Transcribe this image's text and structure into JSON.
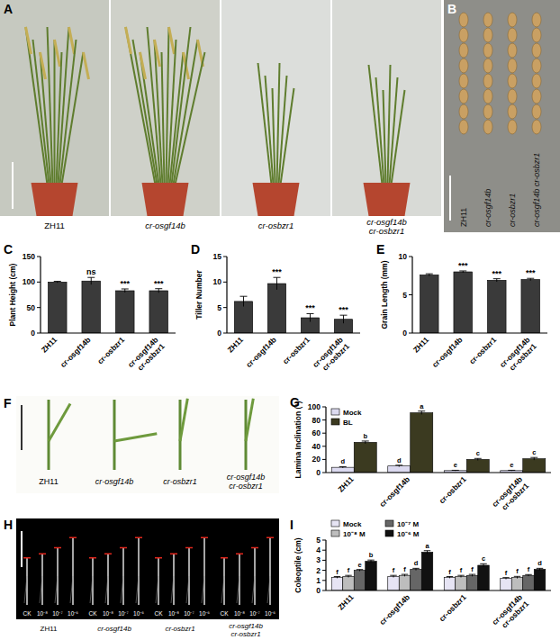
{
  "panels": [
    {
      "panel": "A",
      "labels": [
        "ZH11",
        "cr-osgf14b",
        "cr-osbzr1",
        "cr-osgf14b cr-osbzr1"
      ]
    },
    {
      "panel": "B",
      "labels": [
        "ZH11",
        "cr-osgf14b",
        "cr-osbzr1",
        "cr-osgf14b cr-osbzr1"
      ]
    },
    {
      "panel": "F",
      "labels": [
        "ZH11",
        "cr-osgf14b",
        "cr-osbzr1",
        "cr-osgf14b cr-osbzr1"
      ]
    },
    {
      "panel": "H",
      "labels": [
        "ZH11",
        "cr-osgf14b",
        "cr-osbzr1",
        "cr-osgf14b cr-osbzr1"
      ],
      "treatments": [
        "CK",
        "10⁻⁸",
        "10⁻⁷",
        "10⁻⁶"
      ]
    }
  ],
  "chart_data": [
    {
      "panel": "C",
      "type": "bar",
      "y_label": "Plant Height (cm)",
      "categories": [
        "ZH11",
        "cr-osgf14b",
        "cr-osbzr1",
        "cr-osgf14b cr-osbzr1"
      ],
      "values": [
        100,
        102,
        83,
        83
      ],
      "errors": [
        1.5,
        7,
        3.5,
        4
      ],
      "annotations": [
        null,
        "ns",
        "***",
        "***"
      ],
      "color": "#3a3a3a",
      "ylim": [
        0,
        150
      ],
      "yticks": [
        0,
        50,
        100,
        150
      ],
      "grid": false
    },
    {
      "panel": "D",
      "type": "bar",
      "y_label": "Tiller Number",
      "categories": [
        "ZH11",
        "cr-osgf14b",
        "cr-osbzr1",
        "cr-osgf14b cr-osbzr1"
      ],
      "values": [
        6.2,
        9.7,
        3.0,
        2.7
      ],
      "errors": [
        1.0,
        1.2,
        0.8,
        0.8
      ],
      "annotations": [
        null,
        "***",
        "***",
        "***"
      ],
      "color": "#3a3a3a",
      "ylim": [
        0,
        15
      ],
      "yticks": [
        0,
        5,
        10,
        15
      ],
      "grid": false
    },
    {
      "panel": "E",
      "type": "bar",
      "y_label": "Grain Length (mm)",
      "categories": [
        "ZH11",
        "cr-osgf14b",
        "cr-osbzr1",
        "cr-osgf14b cr-osbzr1"
      ],
      "values": [
        7.6,
        8.0,
        6.9,
        7.0
      ],
      "errors": [
        0.15,
        0.12,
        0.2,
        0.15
      ],
      "annotations": [
        null,
        "***",
        "***",
        "***"
      ],
      "color": "#3a3a3a",
      "ylim": [
        0,
        10
      ],
      "yticks": [
        0,
        5,
        10
      ],
      "grid": false
    },
    {
      "panel": "G",
      "type": "bar",
      "y_label": "Lamina Inclination (°)",
      "categories": [
        "ZH11",
        "cr-osgf14b",
        "cr-osbzr1",
        "cr-osgf14b cr-osbzr1"
      ],
      "series": [
        {
          "name": "Mock",
          "color": "#dcdaf0",
          "values": [
            8,
            10,
            3,
            3
          ],
          "errors": [
            1,
            1.2,
            0.5,
            0.5
          ],
          "annotations": [
            "d",
            "d",
            "e",
            "e"
          ]
        },
        {
          "name": "BL",
          "color": "#3b3a20",
          "values": [
            46,
            91,
            20,
            21
          ],
          "errors": [
            2,
            2.5,
            1.5,
            2
          ],
          "annotations": [
            "b",
            "a",
            "c",
            "c"
          ]
        }
      ],
      "ylim": [
        0,
        100
      ],
      "yticks": [
        0,
        20,
        40,
        60,
        80,
        100
      ],
      "legend": "upper left",
      "grid": false
    },
    {
      "panel": "I",
      "type": "bar",
      "y_label": "Coleoptile (cm)",
      "categories": [
        "ZH11",
        "cr-osgf14b",
        "cr-osbzr1",
        "cr-osgf14b cr-osbzr1"
      ],
      "series": [
        {
          "name": "Mock",
          "color": "#e6e4f4",
          "values": [
            1.3,
            1.4,
            1.3,
            1.2
          ],
          "errors": [
            0.08,
            0.1,
            0.08,
            0.08
          ],
          "annotations": [
            "f",
            "f",
            "f",
            "f"
          ]
        },
        {
          "name": "10⁻⁸ M",
          "color": "#bdbdbd",
          "values": [
            1.4,
            1.5,
            1.4,
            1.3
          ],
          "errors": [
            0.1,
            0.1,
            0.1,
            0.1
          ],
          "annotations": [
            "f",
            "f",
            "f",
            "f"
          ]
        },
        {
          "name": "10⁻⁷ M",
          "color": "#666666",
          "values": [
            2.0,
            2.1,
            1.5,
            1.5
          ],
          "errors": [
            0.08,
            0.1,
            0.1,
            0.08
          ],
          "annotations": [
            "e",
            "d",
            "f",
            "f"
          ]
        },
        {
          "name": "10⁻⁶ M",
          "color": "#111111",
          "values": [
            2.9,
            3.8,
            2.5,
            2.1
          ],
          "errors": [
            0.12,
            0.15,
            0.15,
            0.1
          ],
          "annotations": [
            "b",
            "a",
            "c",
            "d"
          ]
        }
      ],
      "ylim": [
        0,
        5
      ],
      "yticks": [
        0,
        1,
        2,
        3,
        4,
        5
      ],
      "legend": "top",
      "grid": false
    }
  ]
}
